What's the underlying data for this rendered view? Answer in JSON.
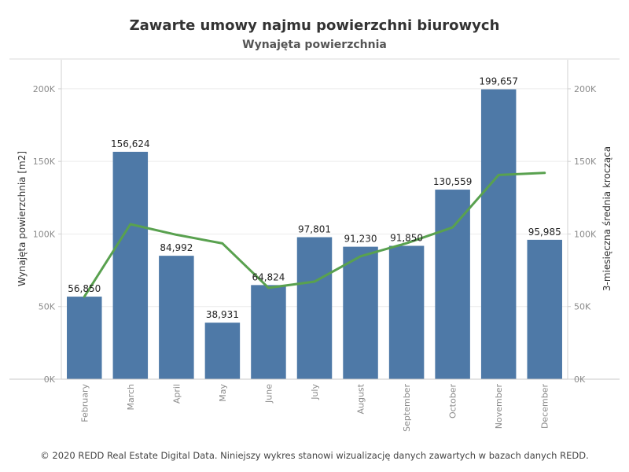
{
  "chart_data": {
    "type": "bar",
    "title": "Zawarte umowy najmu powierzchni biurowych",
    "subtitle": "Wynajęta powierzchnia",
    "categories": [
      "February",
      "March",
      "April",
      "May",
      "June",
      "July",
      "August",
      "September",
      "October",
      "November",
      "December"
    ],
    "series": [
      {
        "type": "bar",
        "values": [
          56850,
          156624,
          84992,
          38931,
          64824,
          97801,
          91230,
          91850,
          130559,
          199657,
          95985
        ],
        "labels": [
          "56,850",
          "156,624",
          "84,992",
          "38,931",
          "64,824",
          "97,801",
          "91,230",
          "91,850",
          "130,559",
          "199,657",
          "95,985"
        ],
        "color": "#4e79a7",
        "axis": "left"
      },
      {
        "type": "line",
        "values": [
          56850,
          106737,
          99489,
          93516,
          62916,
          67185,
          84618,
          93627,
          104546,
          140689,
          142067
        ],
        "color": "#59a14f",
        "axis": "right"
      }
    ],
    "ylabel": "Wynajęta powierzchnia [m2]",
    "y2label": "3-miesięczna średnia krocząca",
    "ylim": [
      0,
      220000
    ],
    "yticks": [
      0,
      50000,
      100000,
      150000,
      200000
    ],
    "ytick_labels": [
      "0K",
      "50K",
      "100K",
      "150K",
      "200K"
    ],
    "y2lim": [
      0,
      220000
    ],
    "y2ticks": [
      0,
      50000,
      100000,
      150000,
      200000
    ],
    "y2tick_labels": [
      "0K",
      "50K",
      "100K",
      "150K",
      "200K"
    ],
    "grid": true,
    "legend": "none"
  },
  "footer": "© 2020 REDD Real Estate Digital Data. Niniejszy wykres stanowi wizualizację danych zawartych w bazach danych REDD."
}
